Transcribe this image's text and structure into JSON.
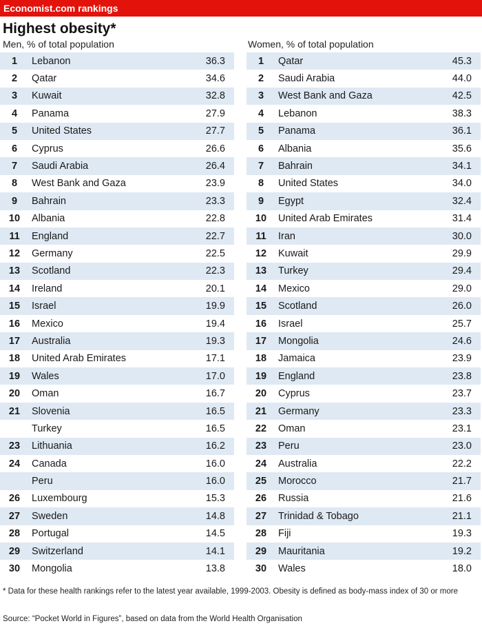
{
  "banner": "Economist.com rankings",
  "chart_data": {
    "type": "table",
    "title": "Highest obesity*",
    "tables": [
      {
        "title": "Men, % of total population",
        "rows": [
          {
            "rank": "1",
            "country": "Lebanon",
            "value": "36.3"
          },
          {
            "rank": "2",
            "country": "Qatar",
            "value": "34.6"
          },
          {
            "rank": "3",
            "country": "Kuwait",
            "value": "32.8"
          },
          {
            "rank": "4",
            "country": "Panama",
            "value": "27.9"
          },
          {
            "rank": "5",
            "country": "United States",
            "value": "27.7"
          },
          {
            "rank": "6",
            "country": "Cyprus",
            "value": "26.6"
          },
          {
            "rank": "7",
            "country": "Saudi Arabia",
            "value": "26.4"
          },
          {
            "rank": "8",
            "country": "West Bank and Gaza",
            "value": "23.9"
          },
          {
            "rank": "9",
            "country": "Bahrain",
            "value": "23.3"
          },
          {
            "rank": "10",
            "country": "Albania",
            "value": "22.8"
          },
          {
            "rank": "11",
            "country": "England",
            "value": "22.7"
          },
          {
            "rank": "12",
            "country": "Germany",
            "value": "22.5"
          },
          {
            "rank": "13",
            "country": "Scotland",
            "value": "22.3"
          },
          {
            "rank": "14",
            "country": "Ireland",
            "value": "20.1"
          },
          {
            "rank": "15",
            "country": "Israel",
            "value": "19.9"
          },
          {
            "rank": "16",
            "country": "Mexico",
            "value": "19.4"
          },
          {
            "rank": "17",
            "country": "Australia",
            "value": "19.3"
          },
          {
            "rank": "18",
            "country": "United Arab Emirates",
            "value": "17.1"
          },
          {
            "rank": "19",
            "country": "Wales",
            "value": "17.0"
          },
          {
            "rank": "20",
            "country": "Oman",
            "value": "16.7"
          },
          {
            "rank": "21",
            "country": "Slovenia",
            "value": "16.5"
          },
          {
            "rank": "",
            "country": "Turkey",
            "value": "16.5"
          },
          {
            "rank": "23",
            "country": "Lithuania",
            "value": "16.2"
          },
          {
            "rank": "24",
            "country": "Canada",
            "value": "16.0"
          },
          {
            "rank": "",
            "country": "Peru",
            "value": "16.0"
          },
          {
            "rank": "26",
            "country": "Luxembourg",
            "value": "15.3"
          },
          {
            "rank": "27",
            "country": "Sweden",
            "value": "14.8"
          },
          {
            "rank": "28",
            "country": "Portugal",
            "value": "14.5"
          },
          {
            "rank": "29",
            "country": "Switzerland",
            "value": "14.1"
          },
          {
            "rank": "30",
            "country": "Mongolia",
            "value": "13.8"
          }
        ]
      },
      {
        "title": "Women, % of total population",
        "rows": [
          {
            "rank": "1",
            "country": "Qatar",
            "value": "45.3"
          },
          {
            "rank": "2",
            "country": "Saudi Arabia",
            "value": "44.0"
          },
          {
            "rank": "3",
            "country": "West Bank and Gaza",
            "value": "42.5"
          },
          {
            "rank": "4",
            "country": "Lebanon",
            "value": "38.3"
          },
          {
            "rank": "5",
            "country": "Panama",
            "value": "36.1"
          },
          {
            "rank": "6",
            "country": "Albania",
            "value": "35.6"
          },
          {
            "rank": "7",
            "country": "Bahrain",
            "value": "34.1"
          },
          {
            "rank": "8",
            "country": "United States",
            "value": "34.0"
          },
          {
            "rank": "9",
            "country": "Egypt",
            "value": "32.4"
          },
          {
            "rank": "10",
            "country": "United Arab Emirates",
            "value": "31.4"
          },
          {
            "rank": "11",
            "country": "Iran",
            "value": "30.0"
          },
          {
            "rank": "12",
            "country": "Kuwait",
            "value": "29.9"
          },
          {
            "rank": "13",
            "country": "Turkey",
            "value": "29.4"
          },
          {
            "rank": "14",
            "country": "Mexico",
            "value": "29.0"
          },
          {
            "rank": "15",
            "country": "Scotland",
            "value": "26.0"
          },
          {
            "rank": "16",
            "country": "Israel",
            "value": "25.7"
          },
          {
            "rank": "17",
            "country": "Mongolia",
            "value": "24.6"
          },
          {
            "rank": "18",
            "country": "Jamaica",
            "value": "23.9"
          },
          {
            "rank": "19",
            "country": "England",
            "value": "23.8"
          },
          {
            "rank": "20",
            "country": "Cyprus",
            "value": "23.7"
          },
          {
            "rank": "21",
            "country": "Germany",
            "value": "23.3"
          },
          {
            "rank": "22",
            "country": "Oman",
            "value": "23.1"
          },
          {
            "rank": "23",
            "country": "Peru",
            "value": "23.0"
          },
          {
            "rank": "24",
            "country": "Australia",
            "value": "22.2"
          },
          {
            "rank": "25",
            "country": "Morocco",
            "value": "21.7"
          },
          {
            "rank": "26",
            "country": "Russia",
            "value": "21.6"
          },
          {
            "rank": "27",
            "country": "Trinidad & Tobago",
            "value": "21.1"
          },
          {
            "rank": "28",
            "country": "Fiji",
            "value": "19.3"
          },
          {
            "rank": "29",
            "country": "Mauritania",
            "value": "19.2"
          },
          {
            "rank": "30",
            "country": "Wales",
            "value": "18.0"
          }
        ]
      }
    ]
  },
  "colors": {
    "banner": "#e3120b",
    "row_shade": "#dfe9f3"
  },
  "footnote": "* Data for these health rankings refer to the latest year available, 1999-2003. Obesity is defined as body-mass index of 30 or more",
  "source": "Source: “Pocket World in Figures”, based on data from the World Health Organisation"
}
